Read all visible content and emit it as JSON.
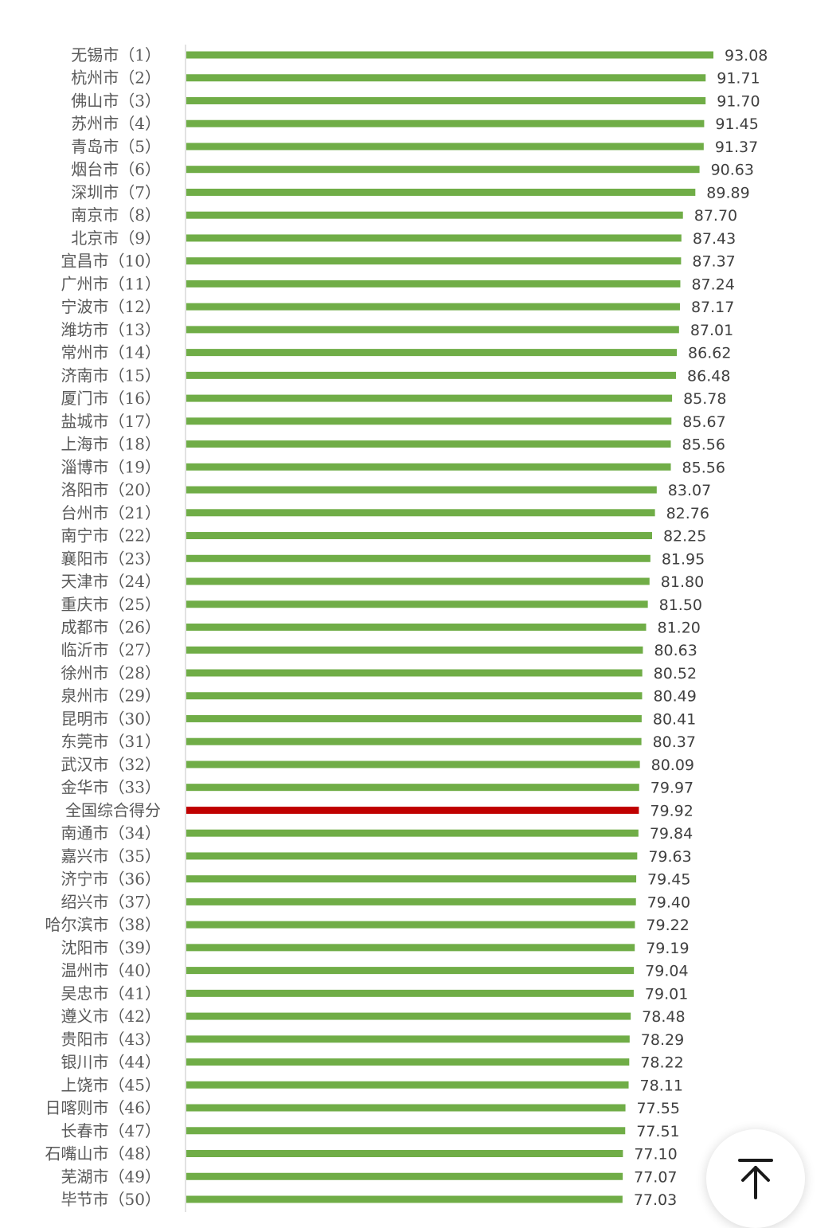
{
  "chart_data": {
    "type": "bar",
    "orientation": "horizontal",
    "categories": [
      "无锡市（1）",
      "杭州市（2）",
      "佛山市（3）",
      "苏州市（4）",
      "青岛市（5）",
      "烟台市（6）",
      "深圳市（7）",
      "南京市（8）",
      "北京市（9）",
      "宜昌市（10）",
      "广州市（11）",
      "宁波市（12）",
      "潍坊市（13）",
      "常州市（14）",
      "济南市（15）",
      "厦门市（16）",
      "盐城市（17）",
      "上海市（18）",
      "淄博市（19）",
      "洛阳市（20）",
      "台州市（21）",
      "南宁市（22）",
      "襄阳市（23）",
      "天津市（24）",
      "重庆市（25）",
      "成都市（26）",
      "临沂市（27）",
      "徐州市（28）",
      "泉州市（29）",
      "昆明市（30）",
      "东莞市（31）",
      "武汉市（32）",
      "金华市（33）",
      "全国综合得分",
      "南通市（34）",
      "嘉兴市（35）",
      "济宁市（36）",
      "绍兴市（37）",
      "哈尔滨市（38）",
      "沈阳市（39）",
      "温州市（40）",
      "吴忠市（41）",
      "遵义市（42）",
      "贵阳市（43）",
      "银川市（44）",
      "上饶市（45）",
      "日喀则市（46）",
      "长春市（47）",
      "石嘴山市（48）",
      "芜湖市（49）",
      "毕节市（50）"
    ],
    "values": [
      93.08,
      91.71,
      91.7,
      91.45,
      91.37,
      90.63,
      89.89,
      87.7,
      87.43,
      87.37,
      87.24,
      87.17,
      87.01,
      86.62,
      86.48,
      85.78,
      85.67,
      85.56,
      85.56,
      83.07,
      82.76,
      82.25,
      81.95,
      81.8,
      81.5,
      81.2,
      80.63,
      80.52,
      80.49,
      80.41,
      80.37,
      80.09,
      79.97,
      79.92,
      79.84,
      79.63,
      79.45,
      79.4,
      79.22,
      79.19,
      79.04,
      79.01,
      78.48,
      78.29,
      78.22,
      78.11,
      77.55,
      77.51,
      77.1,
      77.07,
      77.03
    ],
    "value_labels": [
      "93.08",
      "91.71",
      "91.70",
      "91.45",
      "91.37",
      "90.63",
      "89.89",
      "87.70",
      "87.43",
      "87.37",
      "87.24",
      "87.17",
      "87.01",
      "86.62",
      "86.48",
      "85.78",
      "85.67",
      "85.56",
      "85.56",
      "83.07",
      "82.76",
      "82.25",
      "81.95",
      "81.80",
      "81.50",
      "81.20",
      "80.63",
      "80.52",
      "80.49",
      "80.41",
      "80.37",
      "80.09",
      "79.97",
      "79.92",
      "79.84",
      "79.63",
      "79.45",
      "79.40",
      "79.22",
      "79.19",
      "79.04",
      "79.01",
      "78.48",
      "78.29",
      "78.22",
      "78.11",
      "77.55",
      "77.51",
      "77.10",
      "77.07",
      "77.03"
    ],
    "highlight_category": "全国综合得分",
    "bar_color": "#70ad47",
    "highlight_color": "#c00000",
    "axis_line_color": "#d9d9d9",
    "xlim": [
      0,
      93.08
    ],
    "title": "",
    "xlabel": "",
    "ylabel": "",
    "grid": false,
    "legend": "none"
  },
  "scroll_top": {
    "icon": "arrow-up-to-top-icon"
  }
}
